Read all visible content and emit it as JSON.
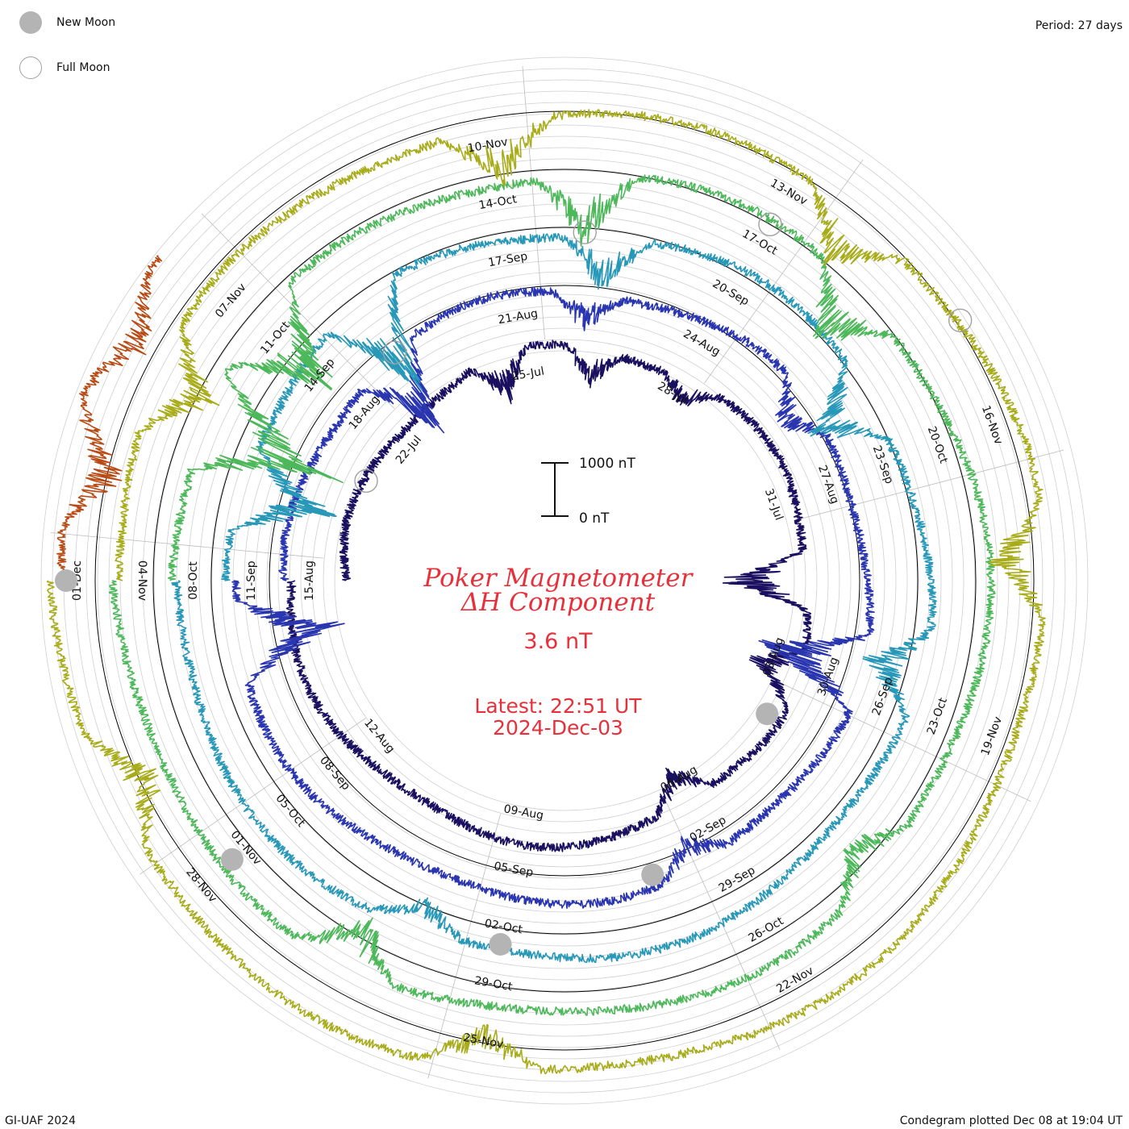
{
  "legend": {
    "new_moon_label": "New Moon",
    "full_moon_label": "Full Moon",
    "new_moon_color": "#b4b4b4",
    "full_moon_color": "#a0a0a0"
  },
  "header": {
    "period": "Period: 27 days"
  },
  "footer": {
    "credit": "GI-UAF 2024",
    "plotted": "Condegram plotted Dec 08 at 19:04 UT"
  },
  "center": {
    "title_line1": "Poker Magnetometer",
    "title_line2": "ΔH Component",
    "value": "3.6 nT",
    "latest_line1": "Latest: 22:51 UT",
    "latest_line2": "2024-Dec-03",
    "scale_top": "1000 nT",
    "scale_bottom": "0 nT",
    "text_color": "#e8303a"
  },
  "chart_data": {
    "type": "line",
    "title": "Poker Magnetometer ΔH Component",
    "period_days": 27,
    "scale_nT": 1000,
    "series": [
      {
        "color": "#1a1060",
        "start": "2024-Jul-19",
        "tick_labels": [
          "22-Jul",
          "25-Jul",
          "28-Jul",
          "31-Jul",
          "03-Aug",
          "06-Aug",
          "09-Aug",
          "12-Aug",
          "15-Aug"
        ],
        "disturbances": [
          [
            5.5,
            220
          ],
          [
            7.3,
            170
          ],
          [
            9.2,
            120
          ],
          [
            13.5,
            420
          ],
          [
            15.2,
            250
          ],
          [
            18.1,
            180
          ]
        ]
      },
      {
        "color": "#2a36b0",
        "start": "2024-Aug-15",
        "tick_labels": [
          "18-Aug",
          "21-Aug",
          "24-Aug",
          "27-Aug",
          "30-Aug",
          "02-Sep",
          "05-Sep",
          "08-Sep",
          "11-Sep"
        ],
        "disturbances": [
          [
            3.8,
            420
          ],
          [
            7.1,
            160
          ],
          [
            10.8,
            190
          ],
          [
            14.8,
            520
          ],
          [
            18.4,
            150
          ],
          [
            26.2,
            480
          ]
        ]
      },
      {
        "color": "#2898b8",
        "start": "2024-Sep-11",
        "tick_labels": [
          "14-Sep",
          "17-Sep",
          "20-Sep",
          "23-Sep",
          "26-Sep",
          "29-Sep",
          "02-Oct",
          "05-Oct",
          "08-Oct"
        ],
        "disturbances": [
          [
            1.2,
            450
          ],
          [
            4.0,
            520
          ],
          [
            7.3,
            250
          ],
          [
            11.2,
            320
          ],
          [
            14.6,
            280
          ],
          [
            22.0,
            150
          ]
        ]
      },
      {
        "color": "#4cb85a",
        "start": "2024-Oct-08",
        "tick_labels": [
          "11-Oct",
          "14-Oct",
          "17-Oct",
          "20-Oct",
          "23-Oct",
          "26-Oct",
          "29-Oct",
          "01-Nov",
          "04-Nov"
        ],
        "disturbances": [
          [
            1.8,
            650
          ],
          [
            3.0,
            480
          ],
          [
            7.0,
            320
          ],
          [
            10.2,
            300
          ],
          [
            16.7,
            200
          ],
          [
            22.5,
            260
          ]
        ]
      },
      {
        "color": "#a8ac18",
        "start": "2024-Nov-04",
        "tick_labels": [
          "07-Nov",
          "10-Nov",
          "13-Nov",
          "16-Nov",
          "19-Nov",
          "22-Nov",
          "25-Nov",
          "28-Nov",
          "01-Dec"
        ],
        "disturbances": [
          [
            2.0,
            300
          ],
          [
            6.1,
            260
          ],
          [
            9.7,
            280
          ],
          [
            13.3,
            260
          ],
          [
            21.0,
            220
          ],
          [
            25.1,
            240
          ]
        ]
      },
      {
        "color": "#b84a14",
        "start": "2024-Dec-01",
        "tick_labels": [],
        "disturbances": [
          [
            1.0,
            260
          ],
          [
            2.2,
            200
          ]
        ]
      }
    ],
    "new_moons": [
      "2024-Aug-04",
      "2024-Sep-03",
      "2024-Oct-02",
      "2024-Nov-01",
      "2024-Dec-01"
    ],
    "full_moons": [
      "2024-Jul-21",
      "2024-Aug-19",
      "2024-Sep-18",
      "2024-Oct-17",
      "2024-Nov-15"
    ]
  }
}
